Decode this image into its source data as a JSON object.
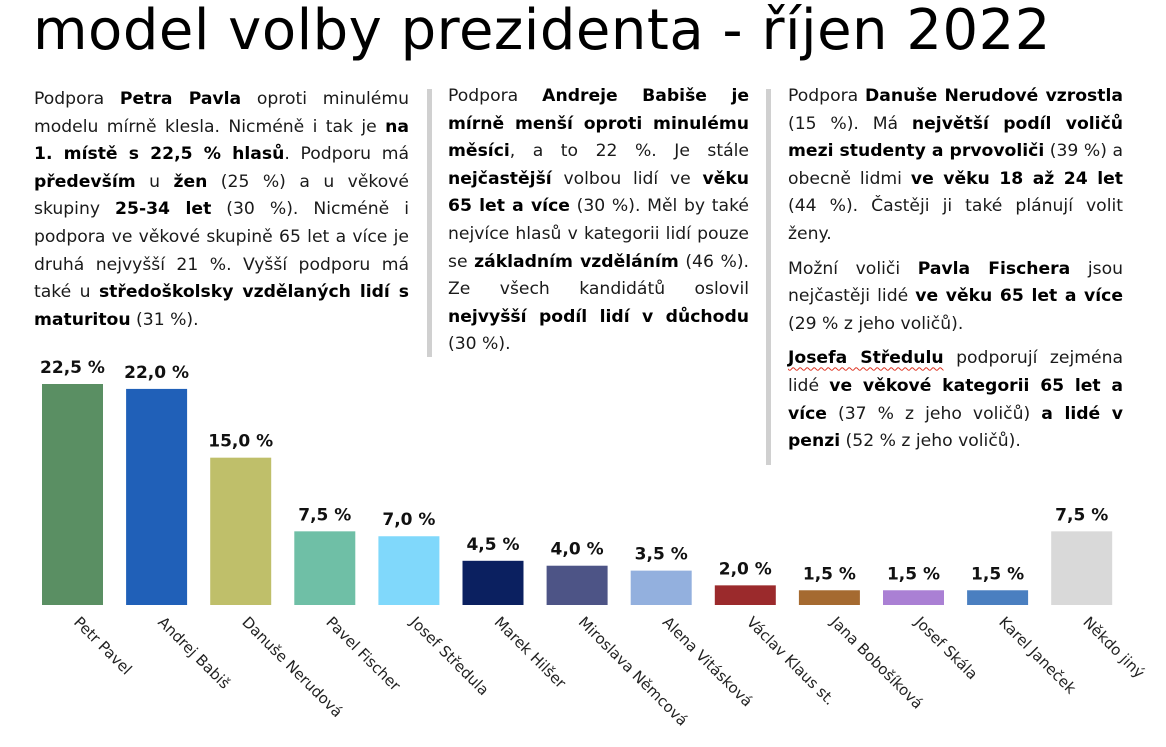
{
  "title": "model volby prezidenta - říjen 2022",
  "columns": [
    {
      "paragraphs": [
        [
          {
            "t": "Podpora "
          },
          {
            "t": "Petra Pavla",
            "b": true
          },
          {
            "t": " oproti minulému modelu mírně klesla. Nicméně i tak je "
          },
          {
            "t": "na 1. místě s 22,5 % hlasů",
            "b": true
          },
          {
            "t": ". Podporu má "
          },
          {
            "t": "především",
            "b": true
          },
          {
            "t": " u "
          },
          {
            "t": "žen",
            "b": true
          },
          {
            "t": " (25 %) a u věkové skupiny "
          },
          {
            "t": "25-34 let",
            "b": true
          },
          {
            "t": " (30 %). Nicméně i podpora ve věkové skupině 65 let a více je druhá nejvyšší 21 %. Vyšší podporu má také u "
          },
          {
            "t": "středoškolsky vzdělaných lidí s maturitou",
            "b": true
          },
          {
            "t": " (31 %)."
          }
        ]
      ]
    },
    {
      "paragraphs": [
        [
          {
            "t": "Podpora "
          },
          {
            "t": "Andreje Babiše je mírně menší oproti minulému měsíci",
            "b": true
          },
          {
            "t": ", a to 22 %. Je stále "
          },
          {
            "t": "nejčastější",
            "b": true
          },
          {
            "t": " volbou lidí ve "
          },
          {
            "t": "věku 65 let a více",
            "b": true
          },
          {
            "t": " (30 %). Měl by také nejvíce hlasů v kategorii lidí pouze se "
          },
          {
            "t": "základním vzděláním",
            "b": true
          },
          {
            "t": " (46 %). Ze všech kandidátů oslovil "
          },
          {
            "t": "nejvyšší podíl lidí v důchodu",
            "b": true
          },
          {
            "t": " (30 %)."
          }
        ]
      ]
    },
    {
      "paragraphs": [
        [
          {
            "t": "Podpora "
          },
          {
            "t": "Danuše Nerudové vzrostla",
            "b": true
          },
          {
            "t": " (15 %). Má "
          },
          {
            "t": "největší podíl voličů mezi studenty a prvovoliči",
            "b": true
          },
          {
            "t": " (39 %) a obecně lidmi "
          },
          {
            "t": "ve věku 18 až 24 let",
            "b": true
          },
          {
            "t": " (44 %). Častěji ji také plánují volit ženy."
          }
        ],
        [
          {
            "t": "Možní voliči "
          },
          {
            "t": "Pavla Fischera",
            "b": true
          },
          {
            "t": " jsou nejčastěji lidé "
          },
          {
            "t": "ve věku 65 let a více",
            "b": true
          },
          {
            "t": " (29 % z jeho voličů)."
          }
        ],
        [
          {
            "t": "Josefa Středulu",
            "b": true,
            "u": true
          },
          {
            "t": " podporují zejména lidé "
          },
          {
            "t": "ve věkové kategorii 65 let a více",
            "b": true
          },
          {
            "t": " (37 % z jeho voličů) "
          },
          {
            "t": "a lidé v penzi",
            "b": true
          },
          {
            "t": " (52 % z jeho voličů)."
          }
        ]
      ]
    }
  ],
  "chart_data": {
    "type": "bar",
    "categories": [
      "Petr Pavel",
      "Andrej Babiš",
      "Danuše Nerudová",
      "Pavel Fischer",
      "Josef Středula",
      "Marek Hilšer",
      "Miroslava Němcová",
      "Alena Vitásková",
      "Václav Klaus st.",
      "Jana Bobošíková",
      "Josef Skála",
      "Karel Janeček",
      "Někdo jiný"
    ],
    "values": [
      22.5,
      22.0,
      15.0,
      7.5,
      7.0,
      4.5,
      4.0,
      3.5,
      2.0,
      1.5,
      1.5,
      1.5,
      7.5
    ],
    "value_labels": [
      "22,5 %",
      "22,0 %",
      "15,0 %",
      "7,5 %",
      "7,0 %",
      "4,5 %",
      "4,0 %",
      "3,5 %",
      "2,0 %",
      "1,5 %",
      "1,5 %",
      "1,5 %",
      "7,5 %"
    ],
    "colors": [
      "#5a8f63",
      "#2060b8",
      "#bfbf6a",
      "#6fbfa6",
      "#80d8fb",
      "#0b2060",
      "#4d5486",
      "#93b0de",
      "#9b2a2c",
      "#a56a30",
      "#aa80d4",
      "#4a7fc0",
      "#d9d9d9"
    ],
    "ylim": [
      0,
      22.5
    ],
    "grid": false,
    "legend": "none"
  }
}
